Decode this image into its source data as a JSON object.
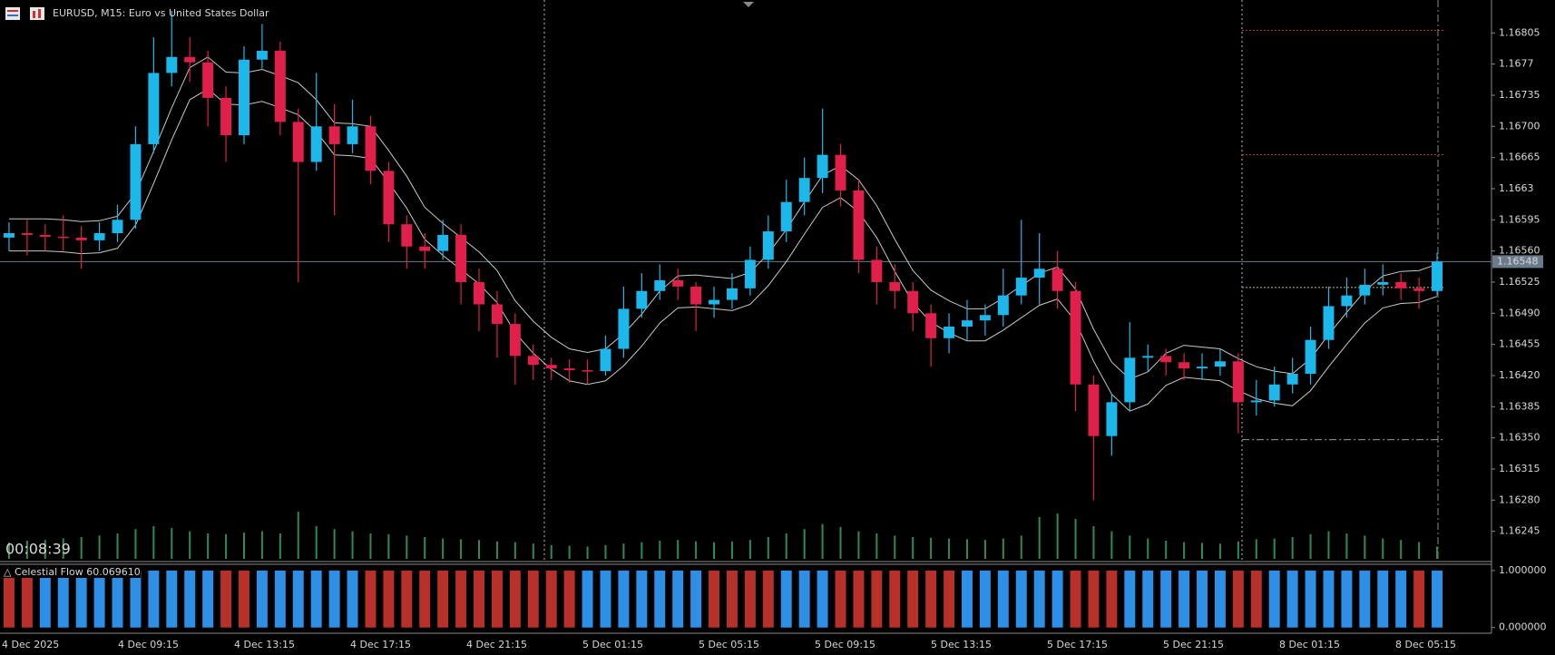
{
  "chart_data": [
    {
      "type": "candlestick",
      "title": "EURUSD, M15:  Euro vs United States Dollar",
      "countdown": "00:08:39",
      "open": [
        1.16575,
        1.1658,
        1.16578,
        1.16576,
        1.16575,
        1.16572,
        1.1658,
        1.16595,
        1.1668,
        1.1676,
        1.16778,
        1.16772,
        1.16732,
        1.1669,
        1.16775,
        1.16785,
        1.16705,
        1.1666,
        1.167,
        1.1668,
        1.167,
        1.1665,
        1.1659,
        1.16565,
        1.1656,
        1.16578,
        1.16525,
        1.165,
        1.16478,
        1.16442,
        1.16432,
        1.16428,
        1.16426,
        1.16425,
        1.1645,
        1.16495,
        1.16515,
        1.16527,
        1.1652,
        1.165,
        1.16505,
        1.16518,
        1.1655,
        1.16582,
        1.16615,
        1.16642,
        1.16668,
        1.16628,
        1.1655,
        1.16525,
        1.16515,
        1.1649,
        1.16462,
        1.16475,
        1.16482,
        1.16488,
        1.1651,
        1.1653,
        1.1654,
        1.16515,
        1.1641,
        1.16352,
        1.1639,
        1.1644,
        1.16442,
        1.16435,
        1.16428,
        1.1643,
        1.16436,
        1.1639,
        1.16392,
        1.1641,
        1.16422,
        1.1646,
        1.16498,
        1.1651,
        1.16522,
        1.16525,
        1.16518,
        1.16515
      ],
      "high": [
        1.16592,
        1.16595,
        1.1659,
        1.166,
        1.16588,
        1.16592,
        1.16612,
        1.167,
        1.168,
        1.1683,
        1.168,
        1.16785,
        1.16745,
        1.1679,
        1.16815,
        1.16795,
        1.1672,
        1.1676,
        1.16725,
        1.1673,
        1.16712,
        1.1666,
        1.166,
        1.1658,
        1.16595,
        1.1659,
        1.1654,
        1.16515,
        1.1649,
        1.16455,
        1.1644,
        1.16438,
        1.16438,
        1.16465,
        1.1652,
        1.16535,
        1.16545,
        1.1654,
        1.16525,
        1.1652,
        1.16535,
        1.16565,
        1.166,
        1.1664,
        1.16665,
        1.1672,
        1.1668,
        1.1664,
        1.16565,
        1.16545,
        1.16525,
        1.165,
        1.1649,
        1.16505,
        1.165,
        1.1654,
        1.16595,
        1.1658,
        1.1656,
        1.16525,
        1.1642,
        1.164,
        1.1648,
        1.16455,
        1.1645,
        1.16445,
        1.16445,
        1.1645,
        1.16445,
        1.16415,
        1.1643,
        1.1644,
        1.16475,
        1.1652,
        1.1653,
        1.1654,
        1.16545,
        1.16535,
        1.1653,
        1.16558
      ],
      "low": [
        1.1656,
        1.16555,
        1.1656,
        1.1656,
        1.1654,
        1.1656,
        1.1657,
        1.16585,
        1.1667,
        1.16745,
        1.1675,
        1.167,
        1.1666,
        1.1668,
        1.16765,
        1.1669,
        1.16525,
        1.1665,
        1.166,
        1.1667,
        1.16635,
        1.1657,
        1.1654,
        1.1654,
        1.1655,
        1.165,
        1.1647,
        1.1644,
        1.1641,
        1.16415,
        1.16415,
        1.16412,
        1.1641,
        1.1642,
        1.1644,
        1.16485,
        1.16505,
        1.16505,
        1.1647,
        1.16485,
        1.16495,
        1.1651,
        1.1654,
        1.1657,
        1.166,
        1.16625,
        1.1661,
        1.16535,
        1.165,
        1.16495,
        1.1647,
        1.1643,
        1.16445,
        1.1646,
        1.16465,
        1.16475,
        1.165,
        1.165,
        1.16495,
        1.1638,
        1.1628,
        1.1633,
        1.1638,
        1.16425,
        1.1642,
        1.16415,
        1.16415,
        1.1642,
        1.16355,
        1.16375,
        1.16385,
        1.164,
        1.1641,
        1.1645,
        1.16485,
        1.165,
        1.1651,
        1.16505,
        1.16495,
        1.1651
      ],
      "close": [
        1.1658,
        1.16578,
        1.16576,
        1.16575,
        1.16572,
        1.1658,
        1.16595,
        1.1668,
        1.1676,
        1.16778,
        1.16772,
        1.16732,
        1.1669,
        1.16775,
        1.16785,
        1.16705,
        1.1666,
        1.167,
        1.1668,
        1.167,
        1.1665,
        1.1659,
        1.16565,
        1.1656,
        1.16578,
        1.16525,
        1.165,
        1.16478,
        1.16442,
        1.16432,
        1.16428,
        1.16426,
        1.16425,
        1.1645,
        1.16495,
        1.16515,
        1.16527,
        1.1652,
        1.165,
        1.16505,
        1.16518,
        1.1655,
        1.16582,
        1.16615,
        1.16642,
        1.16668,
        1.16628,
        1.1655,
        1.16525,
        1.16515,
        1.1649,
        1.16462,
        1.16475,
        1.16482,
        1.16488,
        1.1651,
        1.1653,
        1.1654,
        1.16515,
        1.1641,
        1.16352,
        1.1639,
        1.1644,
        1.16442,
        1.16435,
        1.16428,
        1.1643,
        1.16436,
        1.1639,
        1.16392,
        1.1641,
        1.16422,
        1.1646,
        1.16498,
        1.1651,
        1.16522,
        1.16525,
        1.16518,
        1.16515,
        1.16548
      ],
      "ma_upper": [
        1.16596,
        1.16596,
        1.16596,
        1.16595,
        1.16593,
        1.16594,
        1.16599,
        1.16625,
        1.16672,
        1.16721,
        1.16766,
        1.16778,
        1.16761,
        1.1676,
        1.16764,
        1.16757,
        1.16749,
        1.1673,
        1.16704,
        1.16703,
        1.167,
        1.16673,
        1.16644,
        1.16609,
        1.16591,
        1.16575,
        1.16559,
        1.16538,
        1.16504,
        1.16481,
        1.16463,
        1.1645,
        1.16446,
        1.1645,
        1.16467,
        1.16489,
        1.16515,
        1.16532,
        1.16533,
        1.16531,
        1.16529,
        1.16536,
        1.16557,
        1.16584,
        1.16615,
        1.16645,
        1.16656,
        1.1664,
        1.16611,
        1.16573,
        1.16538,
        1.16516,
        1.16504,
        1.16495,
        1.16495,
        1.16507,
        1.16521,
        1.16535,
        1.16542,
        1.16517,
        1.16472,
        1.16435,
        1.16416,
        1.16424,
        1.16445,
        1.16454,
        1.16452,
        1.1645,
        1.16439,
        1.1643,
        1.16425,
        1.16422,
        1.16439,
        1.16466,
        1.16491,
        1.16515,
        1.16532,
        1.16537,
        1.16538,
        1.16545
      ],
      "ma_lower": [
        1.1656,
        1.1656,
        1.1656,
        1.16559,
        1.16557,
        1.16558,
        1.16563,
        1.16589,
        1.16636,
        1.16685,
        1.1673,
        1.16742,
        1.16725,
        1.16724,
        1.16728,
        1.16721,
        1.16713,
        1.16694,
        1.16668,
        1.16667,
        1.16664,
        1.16637,
        1.16608,
        1.16573,
        1.16555,
        1.16539,
        1.16523,
        1.16502,
        1.16468,
        1.16445,
        1.16427,
        1.16414,
        1.1641,
        1.16414,
        1.16431,
        1.16453,
        1.16479,
        1.16496,
        1.16497,
        1.16495,
        1.16493,
        1.165,
        1.16521,
        1.16548,
        1.16579,
        1.16609,
        1.1662,
        1.16604,
        1.16575,
        1.16537,
        1.16502,
        1.1648,
        1.16468,
        1.16459,
        1.16459,
        1.16471,
        1.16485,
        1.16499,
        1.16506,
        1.16481,
        1.16436,
        1.16399,
        1.1638,
        1.16388,
        1.16409,
        1.16418,
        1.16416,
        1.16414,
        1.16403,
        1.16394,
        1.16389,
        1.16386,
        1.16403,
        1.1643,
        1.16455,
        1.16479,
        1.16496,
        1.16501,
        1.16502,
        1.16509
      ],
      "volume": [
        450,
        500,
        520,
        560,
        600,
        640,
        700,
        820,
        900,
        850,
        760,
        700,
        680,
        720,
        760,
        700,
        1300,
        900,
        820,
        760,
        700,
        680,
        640,
        600,
        560,
        540,
        520,
        480,
        460,
        420,
        380,
        360,
        340,
        380,
        420,
        460,
        500,
        520,
        480,
        460,
        480,
        520,
        600,
        700,
        820,
        960,
        880,
        760,
        700,
        640,
        600,
        580,
        560,
        540,
        520,
        560,
        640,
        1150,
        1250,
        1100,
        900,
        760,
        640,
        560,
        500,
        460,
        440,
        420,
        480,
        540,
        560,
        600,
        680,
        760,
        700,
        640,
        560,
        520,
        460,
        340
      ],
      "ylim": [
        1.16212,
        1.16842
      ],
      "yticks": [
        1.16805,
        1.1677,
        1.16735,
        {
          "value": 1.167,
          "label": "1.16700"
        },
        1.16665,
        1.1663,
        1.16595,
        {
          "value": 1.1656,
          "label": "1.16560"
        },
        1.16525,
        {
          "value": 1.1649,
          "label": "1.16490"
        },
        1.16455,
        {
          "value": 1.1642,
          "label": "1.16420"
        },
        1.16385,
        {
          "value": 1.1635,
          "label": "1.16350"
        },
        1.16315,
        {
          "value": 1.1628,
          "label": "1.16280"
        },
        1.16245
      ],
      "price_line": 1.16548,
      "levels": [
        {
          "value": 1.16808,
          "color": "#c0392b"
        },
        {
          "value": 1.16668,
          "color": "#c0392b"
        },
        {
          "value": 1.16519,
          "color": "#d4c21a"
        },
        {
          "value": 1.16348,
          "color": "#9a9a9a"
        }
      ],
      "time_labels": [
        "4 Dec 2025",
        "4 Dec 09:15",
        "4 Dec 13:15",
        "4 Dec 17:15",
        "4 Dec 21:15",
        "5 Dec 01:15",
        "5 Dec 05:15",
        "5 Dec 09:15",
        "5 Dec 13:15",
        "5 Dec 17:15",
        "5 Dec 21:15",
        "8 Dec 01:15",
        "8 Dec 05:15"
      ],
      "colors": {
        "up": "#1cb8ec",
        "down": "#e0204a",
        "flat": "#8a8a8a",
        "ma": "#c8c8c8",
        "volume": "#2e8b57",
        "price_line": "#6c7b8b"
      }
    },
    {
      "type": "histogram",
      "title": "△ Celestial Flow 60.069610",
      "values": [
        1,
        1,
        1,
        1,
        1,
        1,
        1,
        1,
        1,
        1,
        1,
        1,
        1,
        1,
        1,
        1,
        1,
        1,
        1,
        1,
        1,
        1,
        1,
        1,
        1,
        1,
        1,
        1,
        1,
        1,
        1,
        1,
        1,
        1,
        1,
        1,
        1,
        1,
        1,
        1,
        1,
        1,
        1,
        1,
        1,
        1,
        1,
        1,
        1,
        1,
        1,
        1,
        1,
        1,
        1,
        1,
        1,
        1,
        1,
        1,
        1,
        1,
        1,
        1,
        1,
        1,
        1,
        1,
        1,
        1,
        1,
        1,
        1,
        1,
        1,
        1,
        1,
        1,
        1,
        1
      ],
      "direction": [
        "down",
        "down",
        "up",
        "up",
        "up",
        "up",
        "up",
        "up",
        "up",
        "up",
        "up",
        "up",
        "down",
        "down",
        "up",
        "up",
        "up",
        "up",
        "up",
        "up",
        "down",
        "down",
        "down",
        "down",
        "down",
        "down",
        "down",
        "down",
        "down",
        "down",
        "down",
        "down",
        "up",
        "up",
        "up",
        "up",
        "up",
        "up",
        "up",
        "down",
        "down",
        "down",
        "down",
        "up",
        "up",
        "up",
        "down",
        "down",
        "down",
        "down",
        "down",
        "down",
        "down",
        "up",
        "up",
        "up",
        "up",
        "up",
        "up",
        "down",
        "down",
        "down",
        "up",
        "up",
        "up",
        "up",
        "up",
        "up",
        "down",
        "down",
        "up",
        "up",
        "up",
        "up",
        "up",
        "up",
        "up",
        "up",
        "down",
        "up"
      ],
      "colors": {
        "up": "#2e8fe6",
        "down": "#b8302a"
      },
      "ylim": [
        -0.1,
        1.11
      ],
      "yticks": [
        {
          "value": 1,
          "label": "1.000000"
        },
        {
          "value": 0,
          "label": "0.000000"
        }
      ]
    }
  ]
}
